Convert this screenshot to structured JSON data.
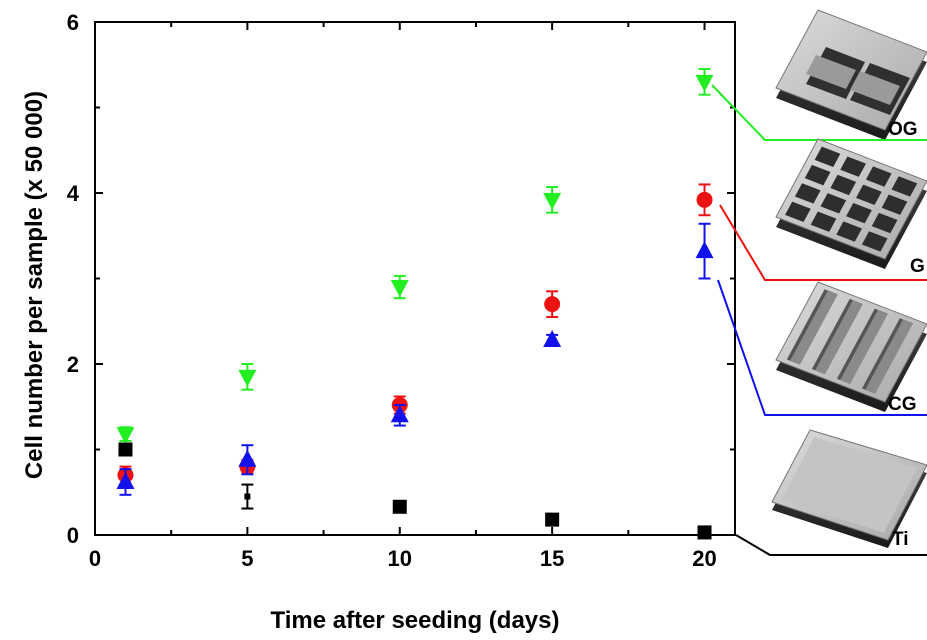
{
  "chart_data": {
    "type": "scatter",
    "xlabel": "Time after seeding (days)",
    "ylabel": "Cell number per sample  (x 50 000)",
    "xlim": [
      0,
      21
    ],
    "ylim": [
      0,
      6
    ],
    "x_ticks": [
      "0",
      "5",
      "10",
      "15",
      "20"
    ],
    "y_ticks": [
      "0",
      "2",
      "4",
      "6"
    ],
    "x_tick_values": [
      0,
      5,
      10,
      15,
      20
    ],
    "y_tick_values": [
      0,
      2,
      4,
      6
    ],
    "grid": false,
    "legend_placement": "right, with 3D surface renderings",
    "series": [
      {
        "name": "OG",
        "color": "#22ee22",
        "marker": "triangle-down",
        "points": [
          {
            "x": 1,
            "y": 1.18,
            "err": 0.08
          },
          {
            "x": 5,
            "y": 1.85,
            "err": 0.15
          },
          {
            "x": 10,
            "y": 2.9,
            "err": 0.13
          },
          {
            "x": 15,
            "y": 3.92,
            "err": 0.15
          },
          {
            "x": 20,
            "y": 5.3,
            "err": 0.15
          }
        ]
      },
      {
        "name": "G",
        "color": "#ee1111",
        "marker": "circle",
        "points": [
          {
            "x": 1,
            "y": 0.7,
            "err": 0.1
          },
          {
            "x": 5,
            "y": 0.8,
            "err": 0.08
          },
          {
            "x": 10,
            "y": 1.52,
            "err": 0.1
          },
          {
            "x": 15,
            "y": 2.7,
            "err": 0.15
          },
          {
            "x": 20,
            "y": 3.92,
            "err": 0.18
          }
        ]
      },
      {
        "name": "CG",
        "color": "#1111ee",
        "marker": "triangle-up",
        "points": [
          {
            "x": 1,
            "y": 0.62,
            "err": 0.15
          },
          {
            "x": 5,
            "y": 0.88,
            "err": 0.17
          },
          {
            "x": 10,
            "y": 1.4,
            "err": 0.12
          },
          {
            "x": 15,
            "y": 2.28,
            "err": 0.06
          },
          {
            "x": 20,
            "y": 3.32,
            "err": 0.32
          }
        ]
      },
      {
        "name": "Ti",
        "color": "#000000",
        "marker": "square",
        "points": [
          {
            "x": 1,
            "y": 1.0,
            "err": 0.0
          },
          {
            "x": 5,
            "y": 0.45,
            "err": 0.14
          },
          {
            "x": 10,
            "y": 0.33,
            "err": 0.0
          },
          {
            "x": 15,
            "y": 0.18,
            "err": 0.0
          },
          {
            "x": 20,
            "y": 0.03,
            "err": 0.0
          }
        ]
      }
    ]
  },
  "legend": {
    "og_label": "OG",
    "g_label": "G",
    "cg_label": "CG",
    "ti_label": "Ti"
  }
}
